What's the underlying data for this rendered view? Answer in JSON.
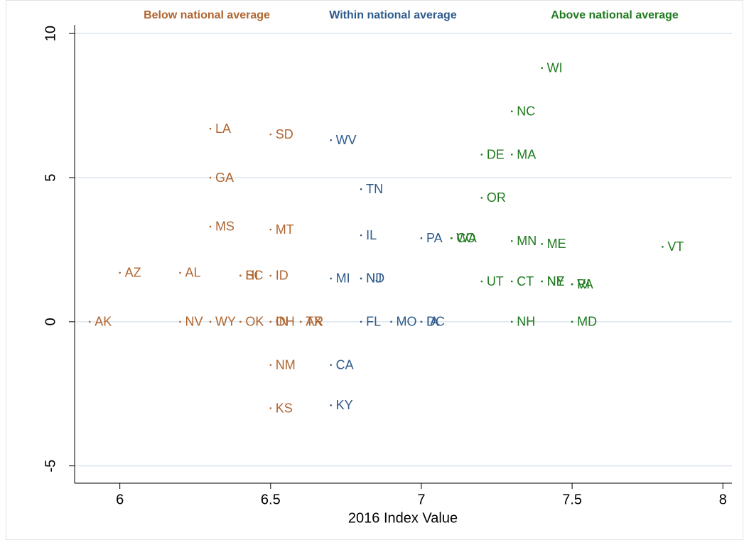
{
  "chart_data": {
    "type": "scatter",
    "xlabel": "2016 Index Value",
    "xlim": [
      5.85,
      8.03
    ],
    "ylim": [
      -5.6,
      10.3
    ],
    "xticks": [
      6,
      6.5,
      7,
      7.5,
      8
    ],
    "yticks": [
      -5,
      0,
      5,
      10
    ],
    "grid": true,
    "series": [
      {
        "name": "Below national average",
        "color": "#b0652f",
        "labels": [
          "AK",
          "AZ",
          "AL",
          "NV",
          "WY",
          "LA",
          "GA",
          "MS",
          "OK",
          "SC",
          "HI",
          "SD",
          "MT",
          "ID",
          "OH",
          "IN",
          "NM",
          "KS",
          "TX",
          "AR"
        ],
        "x": [
          5.9,
          6.0,
          6.2,
          6.2,
          6.3,
          6.3,
          6.3,
          6.3,
          6.4,
          6.4,
          6.4,
          6.5,
          6.5,
          6.5,
          6.5,
          6.5,
          6.5,
          6.5,
          6.6,
          6.6
        ],
        "values": [
          0,
          1.7,
          1.7,
          0,
          0,
          6.7,
          5.0,
          3.3,
          0,
          1.6,
          1.6,
          6.5,
          3.2,
          1.6,
          0,
          0,
          -1.5,
          -3.0,
          0,
          0
        ]
      },
      {
        "name": "Within national average",
        "color": "#2e5a8c",
        "labels": [
          "WV",
          "MI",
          "CA",
          "KY",
          "TN",
          "IL",
          "NJ",
          "ND",
          "FL",
          "MO",
          "PA",
          "IA",
          "DC"
        ],
        "x": [
          6.7,
          6.7,
          6.7,
          6.7,
          6.8,
          6.8,
          6.8,
          6.8,
          6.8,
          6.9,
          7.0,
          7.0,
          7.0
        ],
        "values": [
          6.3,
          1.5,
          -1.5,
          -2.9,
          4.6,
          3.0,
          1.5,
          1.5,
          0,
          0,
          2.9,
          0,
          0
        ]
      },
      {
        "name": "Above national average",
        "color": "#1f7a1f",
        "labels": [
          "CO",
          "WA",
          "WI",
          "NC",
          "DE",
          "MA",
          "OR",
          "MN",
          "ME",
          "VT",
          "UT",
          "CT",
          "NE",
          "NY",
          "RI",
          "VA",
          "NH",
          "MD"
        ],
        "x": [
          7.1,
          7.1,
          7.4,
          7.3,
          7.2,
          7.3,
          7.2,
          7.3,
          7.4,
          7.8,
          7.2,
          7.3,
          7.4,
          7.4,
          7.5,
          7.5,
          7.3,
          7.5
        ],
        "values": [
          2.9,
          2.9,
          8.8,
          7.3,
          5.8,
          5.8,
          4.3,
          2.8,
          2.7,
          2.6,
          1.4,
          1.4,
          1.4,
          1.4,
          1.3,
          1.3,
          0,
          0
        ]
      }
    ]
  }
}
